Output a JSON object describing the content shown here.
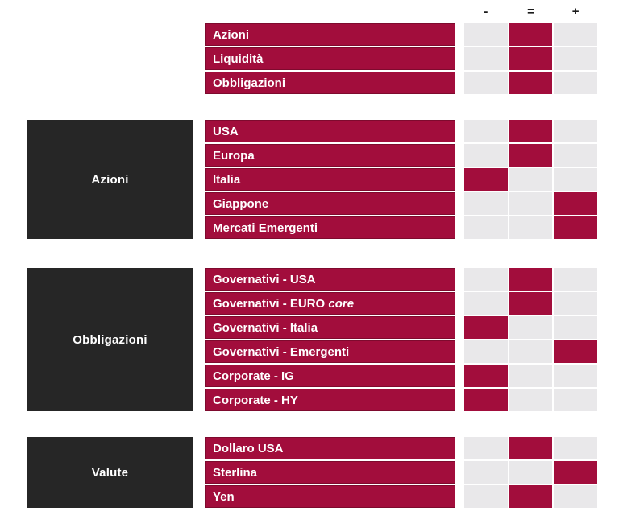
{
  "chart_data": {
    "type": "heatmap",
    "columns": [
      "-",
      "=",
      "+"
    ],
    "colors": {
      "accent": "#A20D3C",
      "group_block": "#262626",
      "cell_empty": "#E9E8EA"
    },
    "sections": [
      {
        "group": "",
        "rows": [
          {
            "label": "Azioni",
            "view": "="
          },
          {
            "label": "Liquidità",
            "view": "="
          },
          {
            "label": "Obbligazioni",
            "view": "="
          }
        ]
      },
      {
        "group": "Azioni",
        "rows": [
          {
            "label": "USA",
            "view": "="
          },
          {
            "label": "Europa",
            "view": "="
          },
          {
            "label": "Italia",
            "view": "-"
          },
          {
            "label": "Giappone",
            "view": "+"
          },
          {
            "label": "Mercati Emergenti",
            "view": "+"
          }
        ]
      },
      {
        "group": "Obbligazioni",
        "rows": [
          {
            "label": "Governativi - USA",
            "view": "="
          },
          {
            "label": "Governativi - EURO ",
            "label_em": "core",
            "view": "="
          },
          {
            "label": "Governativi - Italia",
            "view": "-"
          },
          {
            "label": "Governativi - Emergenti",
            "view": "+"
          },
          {
            "label": "Corporate - IG",
            "view": "-"
          },
          {
            "label": "Corporate - HY",
            "view": "-"
          }
        ]
      },
      {
        "group": "Valute",
        "rows": [
          {
            "label": "Dollaro USA",
            "view": "="
          },
          {
            "label": "Sterlina",
            "view": "+"
          },
          {
            "label": "Yen",
            "view": "="
          }
        ]
      }
    ]
  }
}
